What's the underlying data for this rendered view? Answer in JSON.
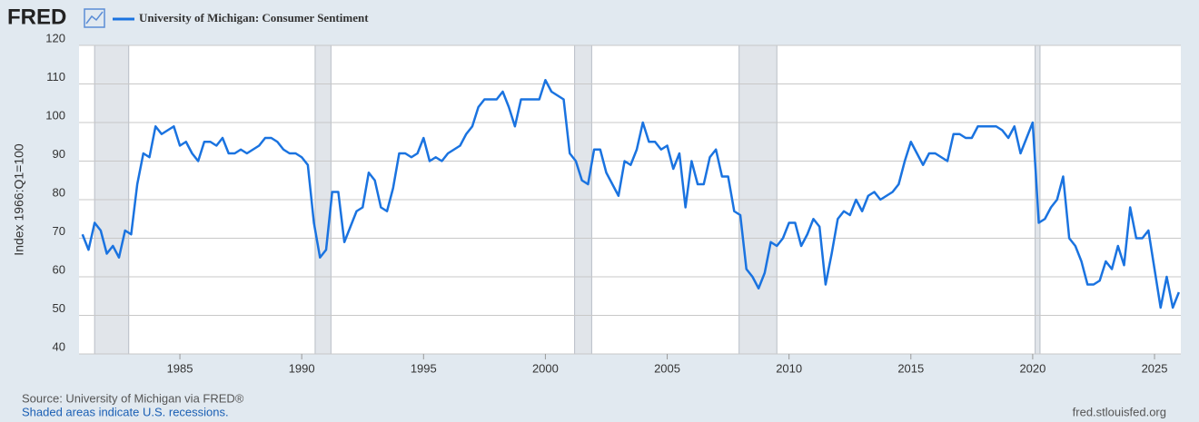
{
  "brand": "FRED",
  "chart_data": {
    "type": "line",
    "ylabel": "Index 1966:Q1=100",
    "source": "Source: University of Michigan via FRED®",
    "note": "Shaded areas indicate U.S. recessions.",
    "site": "fred.stlouisfed.org",
    "x": [
      1981,
      1981.25,
      1981.5,
      1981.75,
      1982,
      1982.25,
      1982.5,
      1982.75,
      1983,
      1983.25,
      1983.5,
      1983.75,
      1984,
      1984.25,
      1984.5,
      1984.75,
      1985,
      1985.25,
      1985.5,
      1985.75,
      1986,
      1986.25,
      1986.5,
      1986.75,
      1987,
      1987.25,
      1987.5,
      1987.75,
      1988,
      1988.25,
      1988.5,
      1988.75,
      1989,
      1989.25,
      1989.5,
      1989.75,
      1990,
      1990.25,
      1990.5,
      1990.75,
      1991,
      1991.25,
      1991.5,
      1991.75,
      1992,
      1992.25,
      1992.5,
      1992.75,
      1993,
      1993.25,
      1993.5,
      1993.75,
      1994,
      1994.25,
      1994.5,
      1994.75,
      1995,
      1995.25,
      1995.5,
      1995.75,
      1996,
      1996.25,
      1996.5,
      1996.75,
      1997,
      1997.25,
      1997.5,
      1997.75,
      1998,
      1998.25,
      1998.5,
      1998.75,
      1999,
      1999.25,
      1999.5,
      1999.75,
      2000,
      2000.25,
      2000.5,
      2000.75,
      2001,
      2001.25,
      2001.5,
      2001.75,
      2002,
      2002.25,
      2002.5,
      2002.75,
      2003,
      2003.25,
      2003.5,
      2003.75,
      2004,
      2004.25,
      2004.5,
      2004.75,
      2005,
      2005.25,
      2005.5,
      2005.75,
      2006,
      2006.25,
      2006.5,
      2006.75,
      2007,
      2007.25,
      2007.5,
      2007.75,
      2008,
      2008.25,
      2008.5,
      2008.75,
      2009,
      2009.25,
      2009.5,
      2009.75,
      2010,
      2010.25,
      2010.5,
      2010.75,
      2011,
      2011.25,
      2011.5,
      2011.75,
      2012,
      2012.25,
      2012.5,
      2012.75,
      2013,
      2013.25,
      2013.5,
      2013.75,
      2014,
      2014.25,
      2014.5,
      2014.75,
      2015,
      2015.25,
      2015.5,
      2015.75,
      2016,
      2016.25,
      2016.5,
      2016.75,
      2017,
      2017.25,
      2017.5,
      2017.75,
      2018,
      2018.25,
      2018.5,
      2018.75,
      2019,
      2019.25,
      2019.5,
      2019.75,
      2020,
      2020.25,
      2020.5,
      2020.75,
      2021,
      2021.25,
      2021.5,
      2021.75,
      2022,
      2022.25,
      2022.5,
      2022.75,
      2023,
      2023.25,
      2023.5,
      2023.75,
      2024,
      2024.25,
      2024.5,
      2024.75,
      2025,
      2025.25,
      2025.5,
      2025.75,
      2026
    ],
    "series": [
      {
        "name": "University of Michigan: Consumer Sentiment",
        "color": "#1a73e0",
        "values": [
          71,
          67,
          74,
          72,
          66,
          68,
          65,
          72,
          71,
          84,
          92,
          91,
          99,
          97,
          98,
          99,
          94,
          95,
          92,
          90,
          95,
          95,
          94,
          96,
          92,
          92,
          93,
          92,
          93,
          94,
          96,
          96,
          95,
          93,
          92,
          92,
          91,
          89,
          74,
          65,
          67,
          82,
          82,
          69,
          73,
          77,
          78,
          87,
          85,
          78,
          77,
          83,
          92,
          92,
          91,
          92,
          96,
          90,
          91,
          90,
          92,
          93,
          94,
          97,
          99,
          104,
          106,
          106,
          106,
          108,
          104,
          99,
          106,
          106,
          106,
          106,
          111,
          108,
          107,
          106,
          92,
          90,
          85,
          84,
          93,
          93,
          87,
          84,
          81,
          90,
          89,
          93,
          100,
          95,
          95,
          93,
          94,
          88,
          92,
          78,
          90,
          84,
          84,
          91,
          93,
          86,
          86,
          77,
          76,
          62,
          60,
          57,
          61,
          69,
          68,
          70,
          74,
          74,
          68,
          71,
          75,
          73,
          58,
          66,
          75,
          77,
          76,
          80,
          77,
          81,
          82,
          80,
          81,
          82,
          84,
          90,
          95,
          92,
          89,
          92,
          92,
          91,
          90,
          97,
          97,
          96,
          96,
          99,
          99,
          99,
          99,
          98,
          96,
          99,
          92,
          96,
          100,
          74,
          75,
          78,
          80,
          86,
          70,
          68,
          64,
          58,
          58,
          59,
          64,
          62,
          68,
          63,
          78,
          70,
          70,
          72,
          62,
          52,
          60,
          52,
          56
        ]
      }
    ],
    "recessions": [
      [
        1981.5,
        1982.9
      ],
      [
        1990.55,
        1991.2
      ],
      [
        2001.2,
        2001.9
      ],
      [
        2007.95,
        2009.5
      ],
      [
        2020.1,
        2020.3
      ]
    ],
    "xlim": [
      1980.86,
      2026.08
    ],
    "xticks": [
      1985,
      1990,
      1995,
      2000,
      2005,
      2010,
      2015,
      2020,
      2025
    ],
    "ylim": [
      40,
      120
    ],
    "yticks": [
      40,
      50,
      60,
      70,
      80,
      90,
      100,
      110,
      120
    ],
    "grid": true
  }
}
